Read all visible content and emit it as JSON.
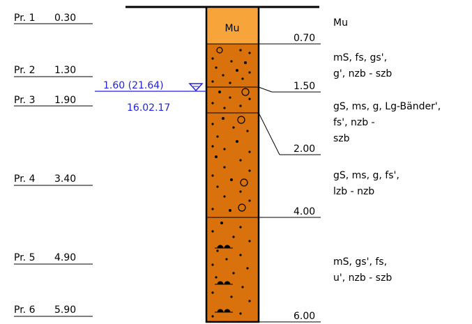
{
  "samples": [
    {
      "label": "Pr. 1",
      "depth": "0.30"
    },
    {
      "label": "Pr. 2",
      "depth": "1.30"
    },
    {
      "label": "Pr. 3",
      "depth": "1.90"
    },
    {
      "label": "Pr. 4",
      "depth": "3.40"
    },
    {
      "label": "Pr. 5",
      "depth": "4.90"
    },
    {
      "label": "Pr. 6",
      "depth": "5.90"
    }
  ],
  "water_level": {
    "value": "1.60 (21.64)",
    "date": "16.02.17",
    "color": "#2222dd"
  },
  "layers": [
    {
      "id": "mu",
      "code": "Mu",
      "bottom": "0.70",
      "color": "#f7a43a",
      "description": [
        "Mu"
      ]
    },
    {
      "id": "ms1",
      "bottom": "1.50",
      "color": "#d9720d",
      "description": [
        "mS, fs, gs',",
        "g', nzb - szb"
      ]
    },
    {
      "id": "gs1",
      "bottom": "2.00",
      "color": "#d9720d",
      "description": [
        "gS, ms, g, Lg-Bänder',",
        "fs', nzb -",
        "szb"
      ]
    },
    {
      "id": "gs2",
      "bottom": "4.00",
      "color": "#d9720d",
      "description": [
        "gS, ms, g, fs',",
        "lzb - nzb"
      ]
    },
    {
      "id": "ms2",
      "bottom": "6.00",
      "color": "#d9720d",
      "description": [
        "mS, gs', fs,",
        "u', nzb - szb"
      ]
    }
  ]
}
